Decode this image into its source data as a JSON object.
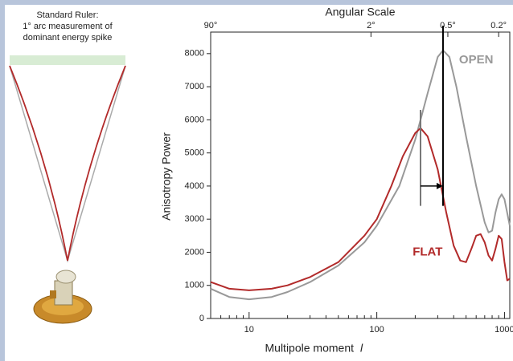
{
  "ruler": {
    "lines": [
      "Standard Ruler:",
      "1° arc measurement of",
      "dominant energy spike"
    ]
  },
  "chart_data": {
    "type": "line",
    "top_axis_title": "Angular Scale",
    "ylabel": "Anisotropy Power",
    "xlabel": "Multipole moment",
    "xlabel_symbol": "l",
    "xscale": "log",
    "xlim": [
      5,
      1100
    ],
    "ylim": [
      0,
      8650
    ],
    "xticks": [
      10,
      100,
      1000
    ],
    "xminorticks": [
      6,
      7,
      8,
      9,
      20,
      30,
      40,
      50,
      60,
      70,
      80,
      90,
      200,
      300,
      400,
      500,
      600,
      700,
      800,
      900
    ],
    "x2ticks": [
      {
        "value": 5,
        "label": "90°"
      },
      {
        "value": 90,
        "label": "2°"
      },
      {
        "value": 360,
        "label": "0.5°"
      },
      {
        "value": 900,
        "label": "0.2°"
      }
    ],
    "yticks": [
      0,
      1000,
      2000,
      3000,
      4000,
      5000,
      6000,
      7000,
      8000
    ],
    "series": [
      {
        "name": "OPEN",
        "color": "#999999",
        "x": [
          5,
          7,
          10,
          15,
          20,
          30,
          50,
          80,
          100,
          150,
          200,
          250,
          300,
          330,
          370,
          420,
          500,
          600,
          700,
          750,
          800,
          850,
          900,
          950,
          1000,
          1100
        ],
        "values": [
          900,
          650,
          580,
          650,
          800,
          1100,
          1600,
          2300,
          2800,
          4000,
          5400,
          6800,
          7900,
          8100,
          7900,
          7000,
          5500,
          4000,
          2900,
          2600,
          2650,
          3200,
          3600,
          3750,
          3600,
          2800
        ],
        "label_x": 600,
        "label_y": 7800
      },
      {
        "name": "FLAT",
        "color": "#b22a2a",
        "x": [
          5,
          7,
          10,
          15,
          20,
          30,
          50,
          80,
          100,
          130,
          160,
          200,
          220,
          250,
          300,
          350,
          400,
          450,
          500,
          550,
          600,
          650,
          700,
          750,
          800,
          850,
          900,
          950,
          1000,
          1050,
          1100
        ],
        "values": [
          1100,
          900,
          850,
          900,
          1000,
          1250,
          1700,
          2500,
          3000,
          4000,
          4900,
          5600,
          5750,
          5500,
          4500,
          3200,
          2200,
          1750,
          1700,
          2100,
          2500,
          2550,
          2300,
          1900,
          1750,
          2100,
          2500,
          2400,
          1700,
          1150,
          1200
        ],
        "label_x": 250,
        "label_y": 2000
      }
    ],
    "markers": [
      {
        "x": 220,
        "from": 3400,
        "to": 6300,
        "color": "#777777"
      },
      {
        "x": 330,
        "from": 3400,
        "to": 8900,
        "color": "#000000"
      }
    ],
    "arrow": {
      "from": 220,
      "to": 330,
      "y": 4000
    }
  }
}
